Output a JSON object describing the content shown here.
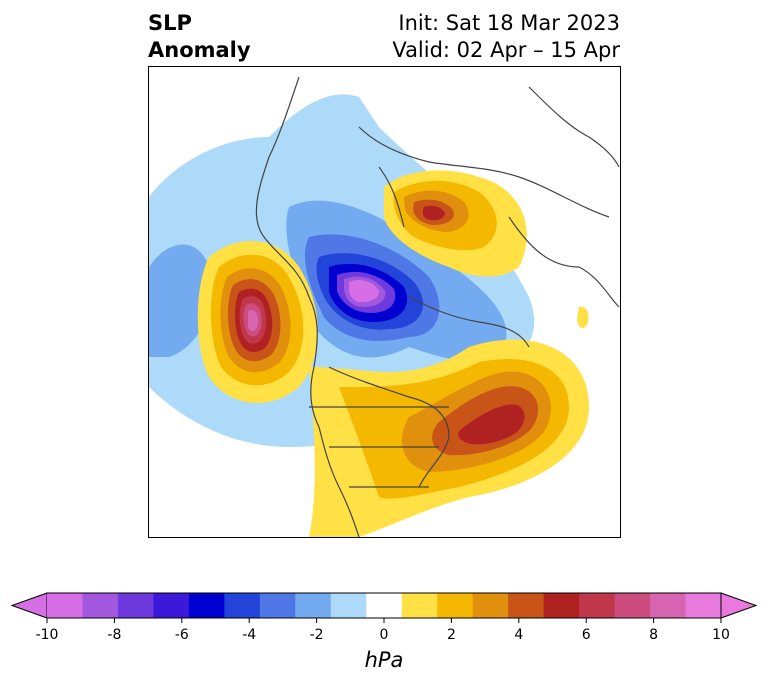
{
  "title": {
    "left_line1": "SLP",
    "left_line2": "Anomaly",
    "init": "Init: Sat 18 Mar 2023",
    "valid": "Valid: 02 Apr – 15 Apr"
  },
  "colorbar": {
    "unit": "hPa",
    "ticks": [
      "-10",
      "-8",
      "-6",
      "-4",
      "-2",
      "0",
      "2",
      "4",
      "6",
      "8",
      "10"
    ],
    "colors": [
      "#d66fe6",
      "#a158df",
      "#6e3ade",
      "#3a1ad8",
      "#0000d0",
      "#2244d8",
      "#4f78e6",
      "#74aaf0",
      "#acdaf8",
      "#ffffff",
      "#ffe045",
      "#f5b800",
      "#e0900c",
      "#c85418",
      "#b02222",
      "#c0364a",
      "#cc4c7e",
      "#d664b0",
      "#e87ade"
    ],
    "extend": "both"
  },
  "map": {
    "projection": "north-polar-stereographic",
    "variable": "sea level pressure anomaly"
  }
}
